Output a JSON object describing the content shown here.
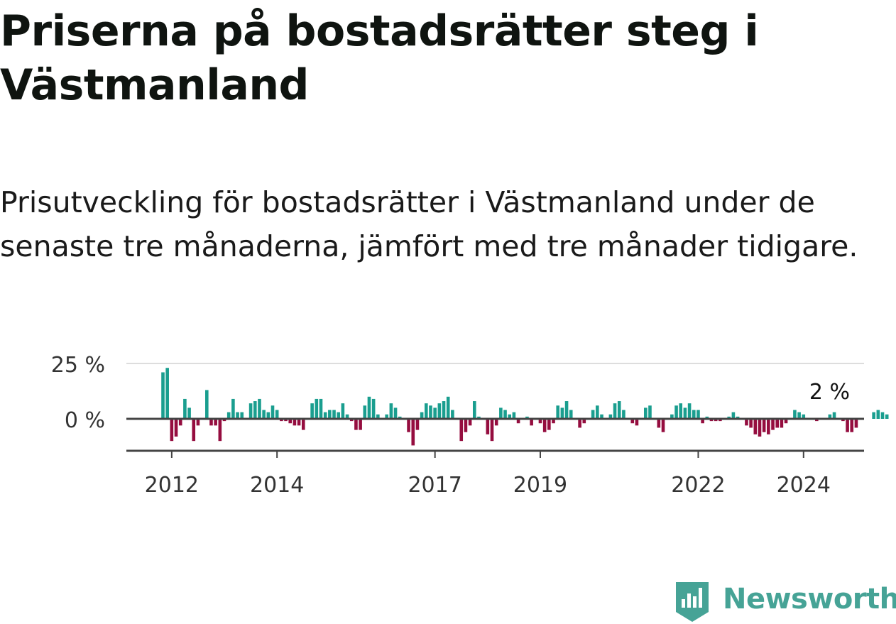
{
  "title": "Priserna på bostadsrätter steg i Västmanland",
  "subtitle": "Prisutveckling för bostadsrätter i Västmanland under de senaste tre månaderna, jämfört med tre månader tidigare.",
  "brand": {
    "name": "Newsworthy",
    "icon": "newsworthy-logo-icon",
    "color": "#46a396"
  },
  "colors": {
    "positive": "#1a9e8f",
    "negative": "#950d3f",
    "zero_line": "#444444",
    "grid": "#dddddd",
    "axis": "#444444"
  },
  "chart_data": {
    "type": "bar",
    "title": "Priserna på bostadsrätter steg i Västmanland",
    "subtitle": "Prisutveckling för bostadsrätter i Västmanland under de senaste tre månaderna, jämfört med tre månader tidigare.",
    "xlabel": "",
    "ylabel": "",
    "unit": "%",
    "ylim": [
      -15,
      27
    ],
    "grid": true,
    "y_ticks": [
      {
        "value": 0,
        "label": "0 %"
      },
      {
        "value": 25,
        "label": "25 %"
      }
    ],
    "x_ticks": [
      {
        "value": 2012,
        "label": "2012"
      },
      {
        "value": 2014,
        "label": "2014"
      },
      {
        "value": 2017,
        "label": "2017"
      },
      {
        "value": 2019,
        "label": "2019"
      },
      {
        "value": 2022,
        "label": "2022"
      },
      {
        "value": 2024,
        "label": "2024"
      }
    ],
    "annotation": {
      "label": "2 %",
      "value": 2
    },
    "x_start": "2011-11",
    "values": [
      21,
      23,
      -10,
      -8,
      -3,
      9,
      5,
      -10,
      -3,
      0,
      13,
      -3,
      -3,
      -10,
      -1,
      3,
      9,
      3,
      3,
      0,
      7,
      8,
      9,
      4,
      3,
      6,
      4,
      -1,
      -1,
      -2,
      -3,
      -3,
      -5,
      0,
      7,
      9,
      9,
      3,
      4,
      4,
      3,
      7,
      2,
      -1,
      -5,
      -5,
      6,
      10,
      9,
      2,
      0,
      2,
      7,
      5,
      1,
      0,
      -6,
      -12,
      -5,
      3,
      7,
      6,
      5,
      7,
      8,
      10,
      4,
      0,
      -10,
      -6,
      -3,
      8,
      1,
      0,
      -7,
      -10,
      -3,
      5,
      4,
      2,
      3,
      -2,
      0,
      1,
      -3,
      0,
      -2,
      -6,
      -5,
      -2,
      6,
      5,
      8,
      4,
      0,
      -4,
      -2,
      0,
      4,
      6,
      2,
      0,
      2,
      7,
      8,
      4,
      0,
      -2,
      -3,
      0,
      5,
      6,
      0,
      -4,
      -6,
      0,
      2,
      6,
      7,
      5,
      7,
      4,
      4,
      -2,
      1,
      -1,
      -1,
      -1,
      0,
      1,
      3,
      1,
      0,
      -3,
      -4,
      -7,
      -8,
      -6,
      -7,
      -5,
      -4,
      -4,
      -2,
      0,
      4,
      3,
      2,
      0,
      0,
      -1,
      0,
      0,
      2,
      3,
      0,
      -1,
      -6,
      -6,
      -4,
      0,
      0,
      0,
      3,
      4,
      3,
      2
    ],
    "series": [
      {
        "values_ref": "values"
      }
    ]
  }
}
